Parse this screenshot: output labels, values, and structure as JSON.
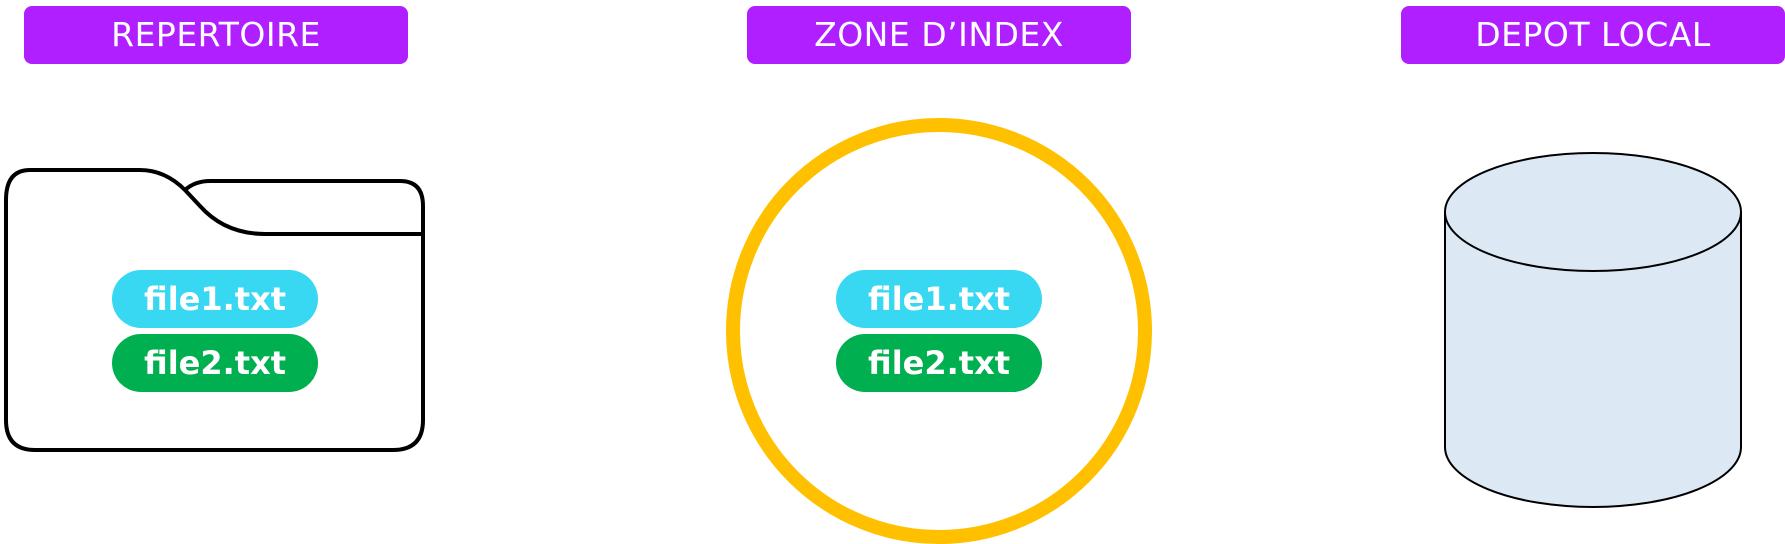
{
  "colors": {
    "header_bg": "#b01fff",
    "pill_file1": "#38d8f2",
    "pill_file2": "#00b050",
    "index_ring": "#ffc000",
    "repo_fill": "#dce9f5",
    "outline": "#000000"
  },
  "columns": [
    {
      "title": "REPERTOIRE",
      "icon": "folder-icon",
      "files": [
        "file1.txt",
        "file2.txt"
      ]
    },
    {
      "title": "ZONE D’INDEX",
      "icon": "ring-icon",
      "files": [
        "file1.txt",
        "file2.txt"
      ]
    },
    {
      "title": "DEPOT LOCAL",
      "icon": "database-cylinder-icon",
      "files": []
    }
  ]
}
